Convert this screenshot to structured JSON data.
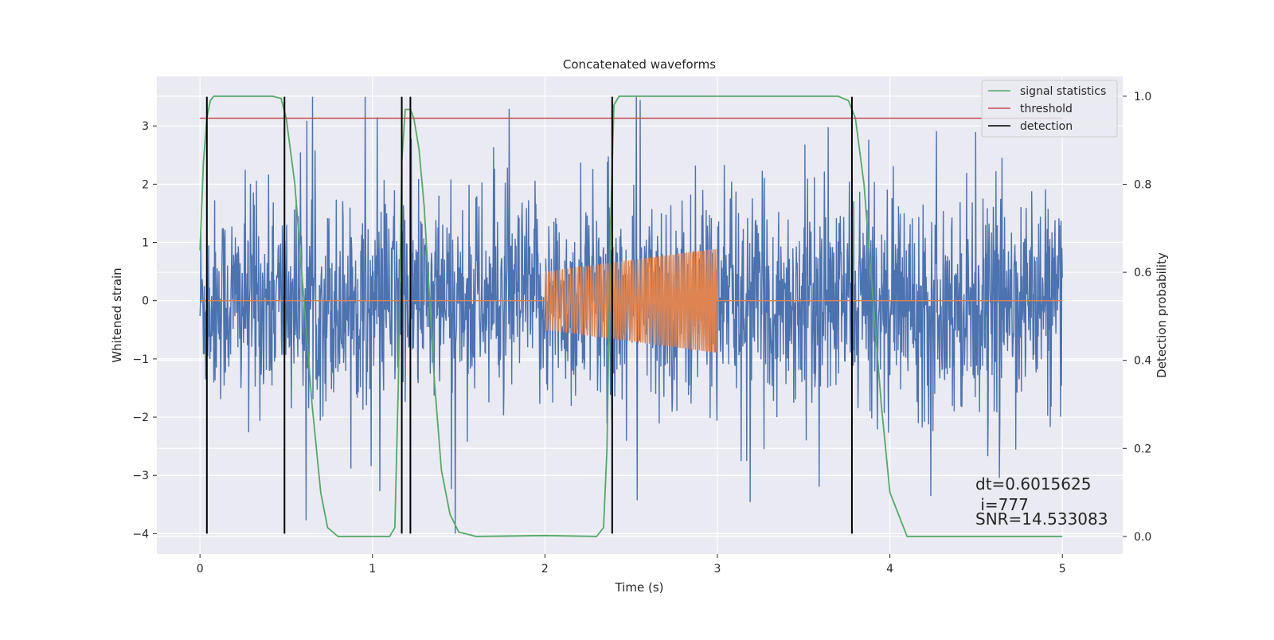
{
  "chart_data": {
    "type": "line",
    "title": "Concatenated waveforms",
    "xlabel": "Time (s)",
    "ylabel": "Whitened strain",
    "ylabel_right": "Detection probability",
    "xlim": [
      -0.25,
      5.35
    ],
    "ylim": [
      -4.35,
      3.85
    ],
    "ylim_right": [
      -0.04,
      1.045
    ],
    "x_ticks": [
      0,
      1,
      2,
      3,
      4,
      5
    ],
    "x_tick_labels": [
      "0",
      "1",
      "2",
      "3",
      "4",
      "5"
    ],
    "y_ticks": [
      -4,
      -3,
      -2,
      -1,
      0,
      1,
      2,
      3
    ],
    "y_tick_labels": [
      "−4",
      "−3",
      "−2",
      "−1",
      "0",
      "1",
      "2",
      "3"
    ],
    "y_right_ticks": [
      0.0,
      0.2,
      0.4,
      0.6,
      0.8,
      1.0
    ],
    "y_right_tick_labels": [
      "0.0",
      "0.2",
      "0.4",
      "0.6",
      "0.8",
      "1.0"
    ],
    "grid": true,
    "legend_position": "top-right",
    "series": [
      {
        "kind": "noise",
        "color": "#4c72b0",
        "x_range": [
          0,
          5
        ],
        "samples": 2000,
        "typical_abs": 1.3,
        "max": 3.5,
        "min": -4.0
      },
      {
        "kind": "chirp",
        "color": "#dd8452",
        "x_range": [
          0,
          5
        ],
        "active_range": [
          2.0,
          3.0
        ],
        "amplitude_start": 0.5,
        "amplitude_end": 0.9,
        "frequency_start": 60,
        "frequency_end": 95
      },
      {
        "name": "signal statistics",
        "axis": "right",
        "color": "#55a868",
        "x": [
          0.0,
          0.02,
          0.04,
          0.06,
          0.08,
          0.12,
          0.2,
          0.3,
          0.42,
          0.47,
          0.5,
          0.55,
          0.6,
          0.65,
          0.7,
          0.74,
          0.8,
          1.0,
          1.1,
          1.13,
          1.15,
          1.17,
          1.19,
          1.22,
          1.24,
          1.27,
          1.3,
          1.33,
          1.36,
          1.4,
          1.45,
          1.5,
          1.6,
          2.0,
          2.3,
          2.34,
          2.36,
          2.38,
          2.4,
          2.43,
          2.5,
          3.0,
          3.5,
          3.7,
          3.76,
          3.8,
          3.85,
          3.9,
          3.95,
          4.0,
          4.1,
          4.5,
          5.0
        ],
        "values": [
          0.65,
          0.85,
          0.95,
          0.99,
          1.0,
          1.0,
          1.0,
          1.0,
          1.0,
          0.995,
          0.95,
          0.8,
          0.55,
          0.3,
          0.1,
          0.02,
          0.0,
          0.0,
          0.0,
          0.02,
          0.35,
          0.85,
          0.97,
          0.97,
          0.95,
          0.88,
          0.75,
          0.55,
          0.35,
          0.15,
          0.05,
          0.01,
          0.0,
          0.002,
          0.0,
          0.02,
          0.2,
          0.7,
          0.98,
          1.0,
          1.0,
          1.0,
          1.0,
          1.0,
          0.99,
          0.95,
          0.8,
          0.55,
          0.3,
          0.1,
          0.0,
          0.0,
          0.0
        ]
      },
      {
        "name": "threshold",
        "axis": "right",
        "color": "#c44e52",
        "x": [
          0,
          5
        ],
        "values": [
          0.95,
          0.95
        ]
      },
      {
        "name": "detection",
        "axis": "left",
        "color": "#000000",
        "vlines_x": [
          0.04,
          0.49,
          1.17,
          1.22,
          2.39,
          3.78
        ],
        "vline_y_range": [
          -4,
          3.5
        ]
      }
    ],
    "legend": [
      {
        "label": "signal statistics",
        "color": "#55a868"
      },
      {
        "label": "threshold",
        "color": "#c44e52"
      },
      {
        "label": "detection",
        "color": "#000000"
      }
    ],
    "annotations": {
      "dt": "dt=0.6015625",
      "i": " i=777",
      "snr": "SNR=14.533083"
    }
  }
}
